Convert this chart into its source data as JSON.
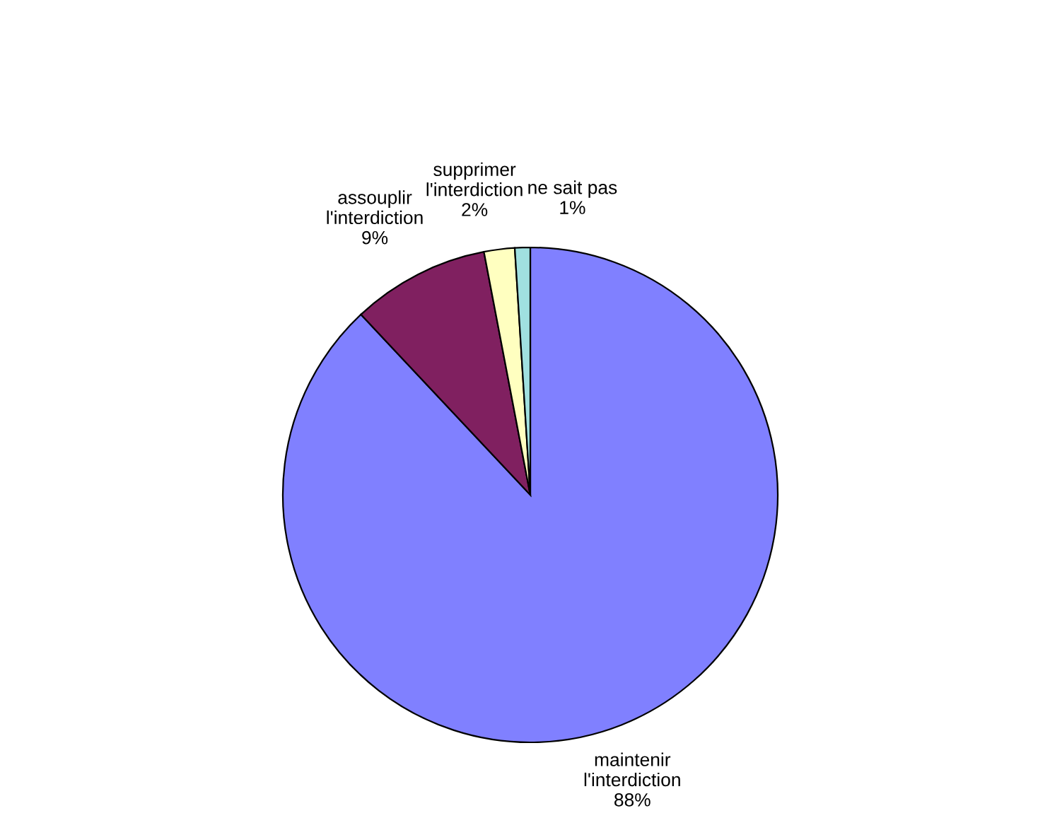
{
  "chart_data": {
    "type": "pie",
    "categories": [
      "maintenir\nl'interdiction",
      "assouplir\nl'interdiction",
      "supprimer\nl'interdiction",
      "ne sait pas"
    ],
    "values": [
      88,
      9,
      2,
      1
    ],
    "value_labels": [
      "88%",
      "9%",
      "2%",
      "1%"
    ],
    "colors": [
      "#8080ff",
      "#802060",
      "#ffffc0",
      "#a0e0e0"
    ],
    "legend": false
  }
}
